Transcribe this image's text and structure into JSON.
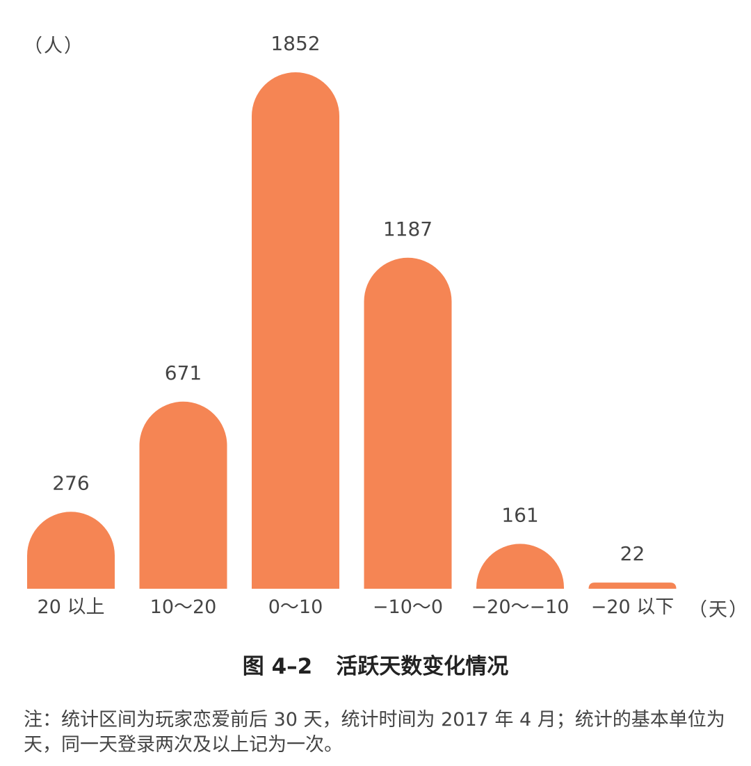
{
  "chart_data": {
    "type": "bar",
    "title": "活跃天数变化情况",
    "figure_number": "图 4–2",
    "ylabel": "（人）",
    "xlabel": "（天）",
    "categories": [
      "20 以上",
      "10～20",
      "0～10",
      "−10～0",
      "−20～−10",
      "−20 以下"
    ],
    "values": [
      276,
      671,
      1852,
      1187,
      161,
      22
    ],
    "value_labels": [
      "276",
      "671",
      "1852",
      "1187",
      "161",
      "22"
    ],
    "ylim": [
      0,
      1852
    ],
    "bar_color": "#F58554",
    "grid": false,
    "legend": "none"
  },
  "note": "注：统计区间为玩家恋爱前后 30 天，统计时间为 2017 年 4 月；统计的基本单位为天，同一天登录两次及以上记为一次。"
}
